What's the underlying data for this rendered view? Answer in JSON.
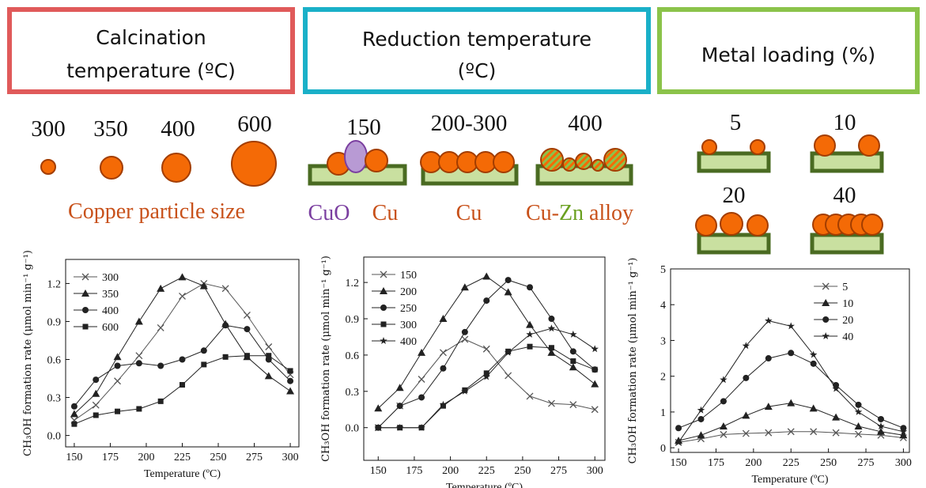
{
  "panels": [
    {
      "title_lines": [
        "Calcination",
        "temperature (ºC)"
      ],
      "labels": [
        "300",
        "350",
        "400",
        "600"
      ],
      "caption": "Copper particle size"
    },
    {
      "title_lines": [
        "Reduction temperature",
        "(ºC)"
      ],
      "labels": [
        "150",
        "200-300",
        "400"
      ],
      "phases": [
        "CuO",
        "Cu",
        "Cu"
      ],
      "alloy": [
        "Cu-",
        "Zn",
        " alloy"
      ]
    },
    {
      "title_lines": [
        "Metal loading (%)"
      ],
      "labels": [
        "5",
        "10",
        "20",
        "40"
      ]
    }
  ],
  "chart_data": [
    {
      "type": "line",
      "x_label": "Temperature (ºC)",
      "y_label": "CH₃OH formation rate (μmol min⁻¹ g⁻¹)",
      "x": [
        150,
        165,
        180,
        195,
        210,
        225,
        240,
        255,
        270,
        285,
        300
      ],
      "xlim": [
        144,
        306
      ],
      "xticks": [
        150,
        175,
        200,
        225,
        250,
        275,
        300
      ],
      "ylim": [
        -0.09,
        1.39
      ],
      "yticks": [
        {
          "value": 0,
          "label": "0.0"
        },
        0.3,
        0.6,
        0.9,
        1.2
      ],
      "legend": "upper left",
      "series": [
        {
          "name": "300",
          "marker": "x",
          "color": "#555",
          "values": [
            0.12,
            0.24,
            0.43,
            0.63,
            0.85,
            1.1,
            1.2,
            1.16,
            0.95,
            0.7,
            0.48
          ]
        },
        {
          "name": "350",
          "marker": "triangle",
          "color": "#222",
          "values": [
            0.17,
            0.33,
            0.62,
            0.9,
            1.16,
            1.25,
            1.18,
            0.88,
            0.62,
            0.47,
            0.35
          ]
        },
        {
          "name": "400",
          "marker": "circle",
          "color": "#222",
          "values": [
            0.23,
            0.44,
            0.55,
            0.57,
            0.55,
            0.6,
            0.67,
            0.87,
            0.84,
            0.6,
            0.43
          ]
        },
        {
          "name": "600",
          "marker": "square",
          "color": "#222",
          "values": [
            0.09,
            0.16,
            0.19,
            0.21,
            0.27,
            0.4,
            0.56,
            0.62,
            0.63,
            0.63,
            0.51
          ]
        }
      ]
    },
    {
      "type": "line",
      "x_label": "Temperature (ºC)",
      "y_label": "CH₃OH formation rate (μmol min⁻¹ g⁻¹)",
      "x": [
        150,
        165,
        180,
        195,
        210,
        225,
        240,
        255,
        270,
        285,
        300
      ],
      "xlim": [
        140,
        307
      ],
      "xticks": [
        150,
        175,
        200,
        225,
        250,
        275,
        300
      ],
      "ylim": [
        -0.27,
        1.41
      ],
      "yticks": [
        {
          "value": 0,
          "label": "0.0"
        },
        0.3,
        0.6,
        0.9,
        1.2
      ],
      "legend": "upper left",
      "series": [
        {
          "name": "150",
          "marker": "x",
          "color": "#555",
          "values": [
            0.0,
            0.18,
            0.4,
            0.62,
            0.73,
            0.65,
            0.43,
            0.26,
            0.2,
            0.19,
            0.15
          ]
        },
        {
          "name": "200",
          "marker": "triangle",
          "color": "#222",
          "values": [
            0.16,
            0.33,
            0.62,
            0.9,
            1.16,
            1.25,
            1.12,
            0.85,
            0.62,
            0.5,
            0.36
          ]
        },
        {
          "name": "250",
          "marker": "circle",
          "color": "#222",
          "values": [
            0.0,
            0.18,
            0.25,
            0.49,
            0.79,
            1.05,
            1.22,
            1.16,
            0.9,
            0.63,
            0.48
          ]
        },
        {
          "name": "300",
          "marker": "square",
          "color": "#222",
          "values": [
            0.0,
            0.0,
            0.0,
            0.18,
            0.31,
            0.45,
            0.63,
            0.67,
            0.66,
            0.55,
            0.48
          ]
        },
        {
          "name": "400",
          "marker": "star",
          "color": "#222",
          "values": [
            0.0,
            0.0,
            0.0,
            0.19,
            0.3,
            0.42,
            0.62,
            0.77,
            0.82,
            0.77,
            0.65
          ]
        }
      ]
    },
    {
      "type": "line",
      "x_label": "Temperature (ºC)",
      "y_label": "CH₃OH formation rate (μmol min⁻¹ g⁻¹)",
      "x": [
        150,
        165,
        180,
        195,
        210,
        225,
        240,
        255,
        270,
        285,
        300
      ],
      "xlim": [
        144.7,
        304
      ],
      "xticks": [
        150,
        175,
        200,
        225,
        250,
        275,
        300
      ],
      "ylim": [
        -0.13,
        5
      ],
      "yticks": [
        0,
        1,
        2,
        3,
        4,
        5
      ],
      "legend": "upper center",
      "series": [
        {
          "name": "5",
          "marker": "x",
          "color": "#555",
          "values": [
            0.15,
            0.25,
            0.37,
            0.4,
            0.42,
            0.45,
            0.45,
            0.42,
            0.38,
            0.35,
            0.28
          ]
        },
        {
          "name": "10",
          "marker": "triangle",
          "color": "#222",
          "values": [
            0.2,
            0.35,
            0.6,
            0.9,
            1.15,
            1.25,
            1.1,
            0.85,
            0.6,
            0.45,
            0.35
          ]
        },
        {
          "name": "20",
          "marker": "circle",
          "color": "#222",
          "values": [
            0.55,
            0.8,
            1.3,
            1.95,
            2.5,
            2.65,
            2.35,
            1.75,
            1.2,
            0.8,
            0.55
          ]
        },
        {
          "name": "40",
          "marker": "star",
          "color": "#222",
          "values": [
            0.15,
            1.05,
            1.9,
            2.85,
            3.55,
            3.4,
            2.6,
            1.65,
            1.0,
            0.6,
            0.45
          ]
        }
      ]
    }
  ]
}
